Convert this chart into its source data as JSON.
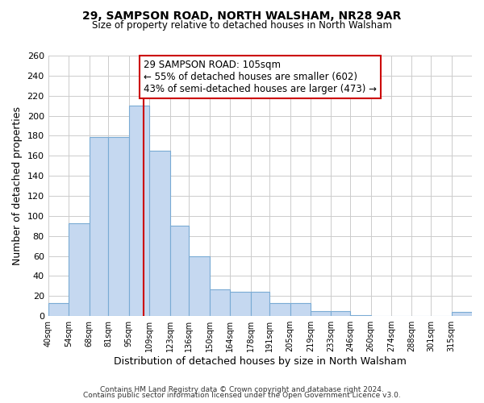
{
  "title": "29, SAMPSON ROAD, NORTH WALSHAM, NR28 9AR",
  "subtitle": "Size of property relative to detached houses in North Walsham",
  "xlabel": "Distribution of detached houses by size in North Walsham",
  "ylabel": "Number of detached properties",
  "bar_labels": [
    "40sqm",
    "54sqm",
    "68sqm",
    "81sqm",
    "95sqm",
    "109sqm",
    "123sqm",
    "136sqm",
    "150sqm",
    "164sqm",
    "178sqm",
    "191sqm",
    "205sqm",
    "219sqm",
    "233sqm",
    "246sqm",
    "260sqm",
    "274sqm",
    "288sqm",
    "301sqm",
    "315sqm"
  ],
  "bar_values": [
    13,
    93,
    179,
    179,
    210,
    165,
    90,
    60,
    27,
    24,
    24,
    13,
    13,
    5,
    5,
    1,
    0,
    0,
    0,
    0,
    4
  ],
  "bar_color": "#c5d8f0",
  "bar_edge_color": "#7aabd4",
  "property_line_color": "#cc0000",
  "annotation_title": "29 SAMPSON ROAD: 105sqm",
  "annotation_line1": "← 55% of detached houses are smaller (602)",
  "annotation_line2": "43% of semi-detached houses are larger (473) →",
  "annotation_box_color": "white",
  "annotation_box_edge": "#cc0000",
  "ylim": [
    0,
    260
  ],
  "yticks": [
    0,
    20,
    40,
    60,
    80,
    100,
    120,
    140,
    160,
    180,
    200,
    220,
    240,
    260
  ],
  "footer1": "Contains HM Land Registry data © Crown copyright and database right 2024.",
  "footer2": "Contains public sector information licensed under the Open Government Licence v3.0.",
  "bin_edges": [
    40,
    54,
    68,
    81,
    95,
    109,
    123,
    136,
    150,
    164,
    178,
    191,
    205,
    219,
    233,
    246,
    260,
    274,
    288,
    301,
    315,
    329
  ]
}
